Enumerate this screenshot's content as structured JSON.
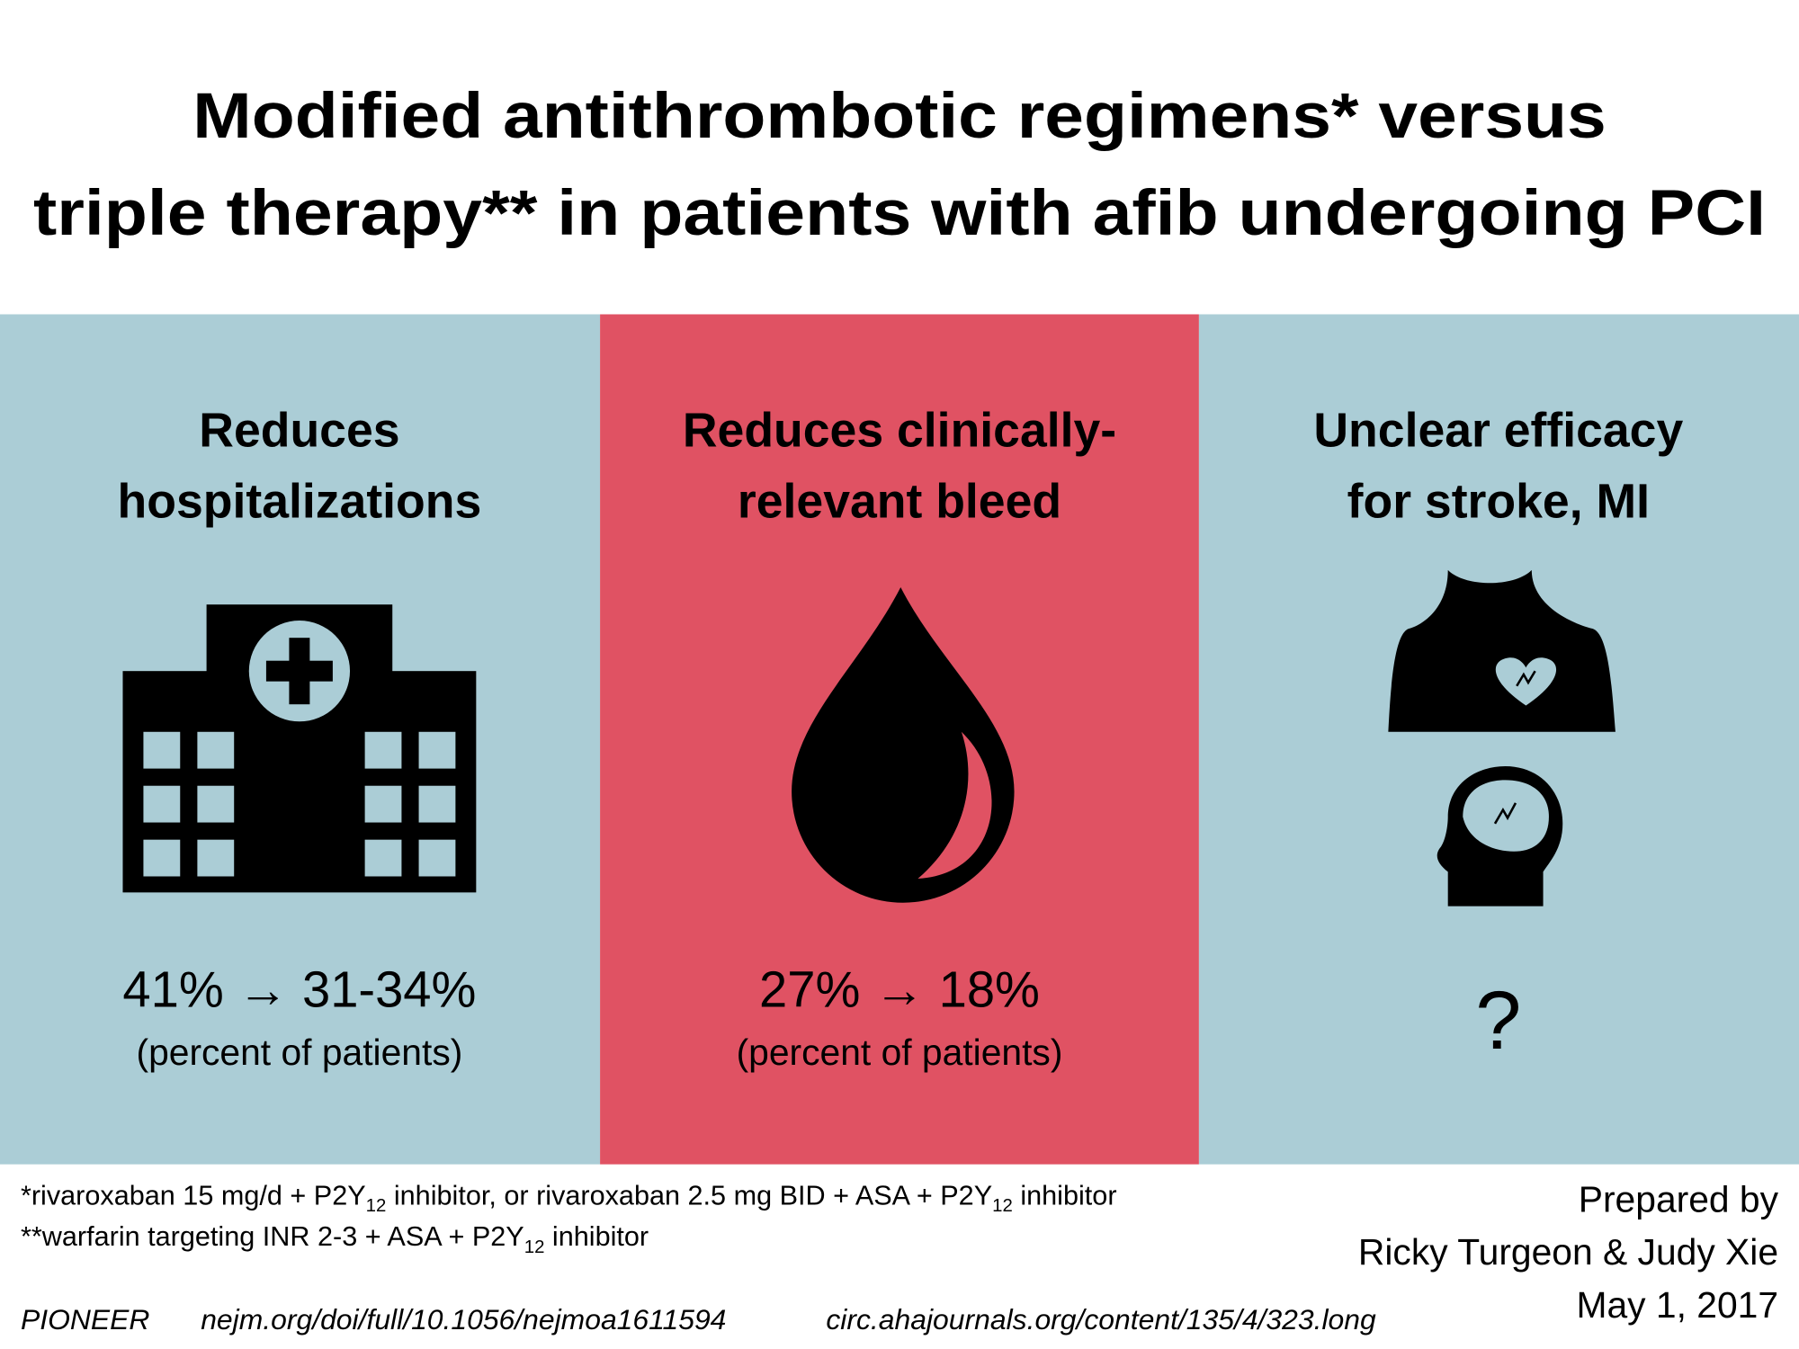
{
  "title": {
    "lines": [
      "Modified antithrombotic regimens* versus",
      "triple therapy** in patients with afib undergoing PCI"
    ]
  },
  "panels": [
    {
      "heading": [
        "Reduces",
        "hospitalizations"
      ],
      "stat": "41% → 31-34%",
      "note": "(percent of patients)"
    },
    {
      "heading": [
        "Reduces clinically-",
        "relevant bleed"
      ],
      "stat": "27% → 18%",
      "note": "(percent of patients)"
    },
    {
      "heading": [
        "Unclear efficacy",
        "for stroke, MI"
      ],
      "stat": "?"
    }
  ],
  "footnotes": [
    [
      {
        "text": "*rivaroxaban 15 mg/d + P2Y"
      },
      {
        "text": "12",
        "sub": true
      },
      {
        "text": " inhibitor, or rivaroxaban 2.5 mg BID + ASA + P2Y"
      },
      {
        "text": "12",
        "sub": true
      },
      {
        "text": " inhibitor"
      }
    ],
    [
      {
        "text": "**warfarin targeting INR 2-3 + ASA + P2Y"
      },
      {
        "text": "12",
        "sub": true
      },
      {
        "text": " inhibitor"
      }
    ]
  ],
  "credits": [
    "Prepared by",
    "Ricky Turgeon & Judy Xie",
    "May 1, 2017"
  ],
  "references": [
    "PIONEER",
    "nejm.org/doi/full/10.1056/nejmoa1611594",
    "circ.ahajournals.org/content/135/4/323.long"
  ]
}
